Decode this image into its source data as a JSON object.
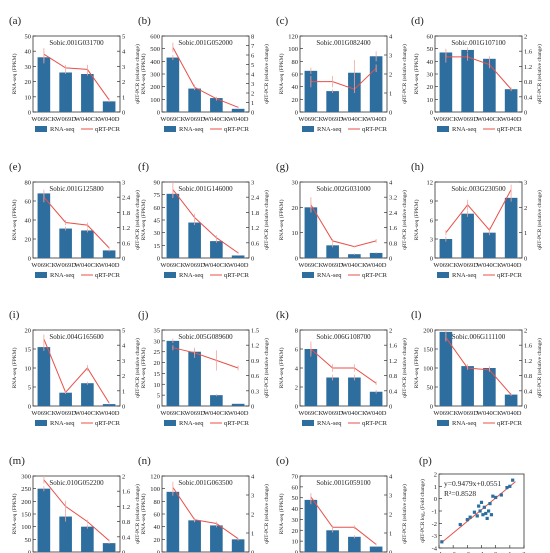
{
  "figure": {
    "common": {
      "categories": [
        "W069CK",
        "W069D",
        "W040CK",
        "W040D"
      ],
      "ylabel_left": "RNA-seq (FPKM)",
      "ylabel_right": "qRT-PCR (relative change)",
      "legend_bar": "RNA-seq",
      "legend_line": "qRT-PCR",
      "colors": {
        "bar": "#2e6e9e",
        "line": "#e8504a",
        "axis": "#333333"
      }
    }
  },
  "chart_data": [
    {
      "type": "bar",
      "panel": "(a)",
      "title": "Sobic.001G031700",
      "categories": [
        "W069CK",
        "W069D",
        "W040CK",
        "W040D"
      ],
      "series": [
        {
          "name": "RNA-seq",
          "axis": "left",
          "values": [
            36,
            26,
            25,
            7
          ],
          "errors": [
            4,
            1,
            1,
            0.5
          ]
        },
        {
          "name": "qRT-PCR",
          "axis": "right",
          "type": "line",
          "values": [
            3.8,
            2.9,
            2.8,
            0.8
          ],
          "errors": [
            0.4,
            0.2,
            0.3,
            0.1
          ]
        }
      ],
      "ylim_left": [
        0,
        50
      ],
      "yticks_left": [
        0,
        10,
        20,
        30,
        40,
        50
      ],
      "ylim_right": [
        0,
        5
      ],
      "yticks_right": [
        0,
        1,
        2,
        3,
        4,
        5
      ]
    },
    {
      "type": "bar",
      "panel": "(b)",
      "title": "Sobic.001G052000",
      "categories": [
        "W069CK",
        "W069D",
        "W040CK",
        "W040D"
      ],
      "series": [
        {
          "name": "RNA-seq",
          "axis": "left",
          "values": [
            430,
            185,
            110,
            25
          ],
          "errors": [
            20,
            10,
            8,
            3
          ]
        },
        {
          "name": "qRT-PCR",
          "axis": "right",
          "type": "line",
          "values": [
            6.8,
            2.6,
            1.4,
            0.5
          ],
          "errors": [
            0.5,
            0.3,
            0.2,
            0.1
          ]
        }
      ],
      "ylim_left": [
        0,
        600
      ],
      "yticks_left": [
        0,
        100,
        200,
        300,
        400,
        500,
        600
      ],
      "ylim_right": [
        0,
        8
      ],
      "yticks_right": [
        0,
        1,
        2,
        3,
        4,
        5,
        6,
        7,
        8
      ]
    },
    {
      "type": "bar",
      "panel": "(c)",
      "title": "Sobic.001G082400",
      "categories": [
        "W069CK",
        "W069D",
        "W040CK",
        "W040D"
      ],
      "series": [
        {
          "name": "RNA-seq",
          "axis": "left",
          "values": [
            65,
            33,
            62,
            88
          ],
          "errors": [
            5,
            3,
            20,
            8
          ]
        },
        {
          "name": "qRT-PCR",
          "axis": "right",
          "type": "line",
          "values": [
            1.6,
            1.6,
            1.2,
            2.3
          ],
          "errors": [
            0.3,
            0.3,
            0.2,
            0.2
          ]
        }
      ],
      "ylim_left": [
        0,
        120
      ],
      "yticks_left": [
        0,
        20,
        40,
        60,
        80,
        100,
        120
      ],
      "ylim_right": [
        0,
        4
      ],
      "yticks_right": [
        0,
        1,
        2,
        3,
        4
      ]
    },
    {
      "type": "bar",
      "panel": "(d)",
      "title": "Sobic.001G107100",
      "categories": [
        "W069CK",
        "W069D",
        "W040CK",
        "W040D"
      ],
      "series": [
        {
          "name": "RNA-seq",
          "axis": "left",
          "values": [
            47,
            49,
            42,
            18
          ],
          "errors": [
            3,
            2,
            2,
            1
          ]
        },
        {
          "name": "qRT-PCR",
          "axis": "right",
          "type": "line",
          "values": [
            1.45,
            1.45,
            1.25,
            0.6
          ],
          "errors": [
            0.15,
            0.1,
            0.1,
            0.05
          ]
        }
      ],
      "ylim_left": [
        0,
        60
      ],
      "yticks_left": [
        0,
        10,
        20,
        30,
        40,
        50,
        60
      ],
      "ylim_right": [
        0,
        2.0
      ],
      "yticks_right": [
        0,
        0.4,
        0.8,
        1.2,
        1.6,
        2.0
      ]
    },
    {
      "type": "bar",
      "panel": "(e)",
      "title": "Sobic.001G125800",
      "categories": [
        "W069CK",
        "W069D",
        "W040CK",
        "W040D"
      ],
      "series": [
        {
          "name": "RNA-seq",
          "axis": "left",
          "values": [
            68,
            31,
            29,
            8
          ],
          "errors": [
            4,
            2,
            2,
            1
          ]
        },
        {
          "name": "qRT-PCR",
          "axis": "right",
          "type": "line",
          "values": [
            2.4,
            1.4,
            1.3,
            0.4
          ],
          "errors": [
            0.2,
            0.1,
            0.1,
            0.05
          ]
        }
      ],
      "ylim_left": [
        0,
        80
      ],
      "yticks_left": [
        0,
        20,
        40,
        60,
        80
      ],
      "ylim_right": [
        0,
        3.0
      ],
      "yticks_right": [
        0,
        0.6,
        1.2,
        1.8,
        2.4,
        3.0
      ]
    },
    {
      "type": "bar",
      "panel": "(f)",
      "title": "Sobic.001G146000",
      "categories": [
        "W069CK",
        "W069D",
        "W040CK",
        "W040D"
      ],
      "series": [
        {
          "name": "RNA-seq",
          "axis": "left",
          "values": [
            76,
            42,
            20,
            3
          ],
          "errors": [
            5,
            3,
            2,
            0.5
          ]
        },
        {
          "name": "qRT-PCR",
          "axis": "right",
          "type": "line",
          "values": [
            2.7,
            1.6,
            0.8,
            0.2
          ],
          "errors": [
            0.3,
            0.15,
            0.1,
            0.05
          ]
        }
      ],
      "ylim_left": [
        0,
        90
      ],
      "yticks_left": [
        0,
        15,
        30,
        45,
        60,
        75,
        90
      ],
      "ylim_right": [
        0,
        3.0
      ],
      "yticks_right": [
        0,
        0.6,
        1.2,
        1.8,
        2.4,
        3.0
      ]
    },
    {
      "type": "bar",
      "panel": "(g)",
      "title": "Sobic.002G031000",
      "categories": [
        "W069CK",
        "W069D",
        "W040CK",
        "W040D"
      ],
      "series": [
        {
          "name": "RNA-seq",
          "axis": "left",
          "values": [
            20,
            5,
            1.5,
            2
          ],
          "errors": [
            2,
            0.8,
            0.3,
            0.3
          ]
        },
        {
          "name": "qRT-PCR",
          "axis": "right",
          "type": "line",
          "values": [
            2.8,
            0.9,
            0.6,
            0.9
          ],
          "errors": [
            0.4,
            0.1,
            0.05,
            0.1
          ]
        }
      ],
      "ylim_left": [
        0,
        30
      ],
      "yticks_left": [
        0,
        10,
        20,
        30
      ],
      "ylim_right": [
        0,
        4.0
      ],
      "yticks_right": [
        0,
        0.8,
        1.6,
        2.4,
        3.2,
        4.0
      ]
    },
    {
      "type": "bar",
      "panel": "(h)",
      "title": "Sobic.003G230500",
      "categories": [
        "W069CK",
        "W069D",
        "W040CK",
        "W040D"
      ],
      "series": [
        {
          "name": "RNA-seq",
          "axis": "left",
          "values": [
            3,
            7,
            4,
            9.5
          ],
          "errors": [
            0.4,
            0.5,
            0.4,
            0.6
          ]
        },
        {
          "name": "qRT-PCR",
          "axis": "right",
          "type": "line",
          "values": [
            1.0,
            2.1,
            1.1,
            2.7
          ],
          "errors": [
            0.1,
            0.2,
            0.1,
            0.2
          ]
        }
      ],
      "ylim_left": [
        0,
        12
      ],
      "yticks_left": [
        0,
        3,
        6,
        9,
        12
      ],
      "ylim_right": [
        0,
        3
      ],
      "yticks_right": [
        0,
        1,
        2,
        3
      ]
    },
    {
      "type": "bar",
      "panel": "(i)",
      "title": "Sobic.004G165600",
      "categories": [
        "W069CK",
        "W069D",
        "W040CK",
        "W040D"
      ],
      "series": [
        {
          "name": "RNA-seq",
          "axis": "left",
          "values": [
            15.5,
            3.5,
            6,
            0.5
          ],
          "errors": [
            1,
            0.3,
            0.4,
            0.1
          ]
        },
        {
          "name": "qRT-PCR",
          "axis": "right",
          "type": "line",
          "values": [
            4.4,
            0.9,
            2.5,
            0.2
          ],
          "errors": [
            0.3,
            0.1,
            0.2,
            0.05
          ]
        }
      ],
      "ylim_left": [
        0,
        20
      ],
      "yticks_left": [
        0,
        5,
        10,
        15,
        20
      ],
      "ylim_right": [
        0,
        5
      ],
      "yticks_right": [
        0,
        1,
        2,
        3,
        4,
        5
      ]
    },
    {
      "type": "bar",
      "panel": "(j)",
      "title": "Sobic.005G089600",
      "categories": [
        "W069CK",
        "W069D",
        "W040CK",
        "W040D"
      ],
      "series": [
        {
          "name": "RNA-seq",
          "axis": "left",
          "values": [
            30,
            25,
            5,
            1
          ],
          "errors": [
            1,
            1.5,
            0.5,
            0.2
          ]
        },
        {
          "name": "qRT-PCR",
          "axis": "right",
          "type": "line",
          "values": [
            1.15,
            1.05,
            0.9,
            0.75
          ],
          "errors": [
            0.05,
            0.1,
            0.2,
            0.05
          ]
        }
      ],
      "ylim_left": [
        0,
        35
      ],
      "yticks_left": [
        0,
        5,
        10,
        15,
        20,
        25,
        30,
        35
      ],
      "ylim_right": [
        0,
        1.5
      ],
      "yticks_right": [
        0,
        0.3,
        0.6,
        0.9,
        1.2,
        1.5
      ]
    },
    {
      "type": "bar",
      "panel": "(k)",
      "title": "Sobic.006G108700",
      "categories": [
        "W069CK",
        "W069D",
        "W040CK",
        "W040D"
      ],
      "series": [
        {
          "name": "RNA-seq",
          "axis": "left",
          "values": [
            6,
            3,
            3,
            1.5
          ],
          "errors": [
            0.5,
            0.3,
            0.3,
            0.2
          ]
        },
        {
          "name": "qRT-PCR",
          "axis": "right",
          "type": "line",
          "values": [
            1.5,
            1.0,
            1.0,
            0.6
          ],
          "errors": [
            0.2,
            0.1,
            0.1,
            0.05
          ]
        }
      ],
      "ylim_left": [
        0,
        8
      ],
      "yticks_left": [
        0,
        2,
        4,
        6,
        8
      ],
      "ylim_right": [
        0,
        2.0
      ],
      "yticks_right": [
        0,
        0.4,
        0.8,
        1.2,
        1.6,
        2.0
      ]
    },
    {
      "type": "bar",
      "panel": "(l)",
      "title": "Sobic.006G111100",
      "categories": [
        "W069CK",
        "W069D",
        "W040CK",
        "W040D"
      ],
      "series": [
        {
          "name": "RNA-seq",
          "axis": "left",
          "values": [
            195,
            105,
            100,
            30
          ],
          "errors": [
            8,
            5,
            5,
            3
          ]
        },
        {
          "name": "qRT-PCR",
          "axis": "right",
          "type": "line",
          "values": [
            1.8,
            1.0,
            0.95,
            0.3
          ],
          "errors": [
            0.1,
            0.05,
            0.05,
            0.03
          ]
        }
      ],
      "ylim_left": [
        0,
        200
      ],
      "yticks_left": [
        0,
        50,
        100,
        150,
        200
      ],
      "ylim_right": [
        0,
        2.0
      ],
      "yticks_right": [
        0,
        0.4,
        0.8,
        1.2,
        1.6,
        2.0
      ]
    },
    {
      "type": "bar",
      "panel": "(m)",
      "title": "Sobic.010G052200",
      "categories": [
        "W069CK",
        "W069D",
        "W040CK",
        "W040D"
      ],
      "series": [
        {
          "name": "RNA-seq",
          "axis": "left",
          "values": [
            250,
            140,
            100,
            35
          ],
          "errors": [
            10,
            20,
            8,
            3
          ]
        },
        {
          "name": "qRT-PCR",
          "axis": "right",
          "type": "line",
          "values": [
            1.9,
            1.2,
            0.8,
            0.3
          ],
          "errors": [
            0.1,
            0.15,
            0.05,
            0.03
          ]
        }
      ],
      "ylim_left": [
        0,
        300
      ],
      "yticks_left": [
        0,
        50,
        100,
        150,
        200,
        250,
        300
      ],
      "ylim_right": [
        0,
        2.0
      ],
      "yticks_right": [
        0,
        0.4,
        0.8,
        1.2,
        1.6,
        2.0
      ]
    },
    {
      "type": "bar",
      "panel": "(n)",
      "title": "Sobic.001G063500",
      "categories": [
        "W069CK",
        "W069D",
        "W040CK",
        "W040D"
      ],
      "series": [
        {
          "name": "RNA-seq",
          "axis": "left",
          "values": [
            95,
            50,
            42,
            20
          ],
          "errors": [
            6,
            3,
            3,
            2
          ]
        },
        {
          "name": "qRT-PCR",
          "axis": "right",
          "type": "line",
          "values": [
            3.4,
            1.7,
            1.5,
            0.7
          ],
          "errors": [
            0.3,
            0.1,
            0.1,
            0.05
          ]
        }
      ],
      "ylim_left": [
        0,
        120
      ],
      "yticks_left": [
        0,
        20,
        40,
        60,
        80,
        100,
        120
      ],
      "ylim_right": [
        0,
        4
      ],
      "yticks_right": [
        0,
        1,
        2,
        3,
        4
      ]
    },
    {
      "type": "bar",
      "panel": "(o)",
      "title": "Sobic.001G059100",
      "categories": [
        "W069CK",
        "W069D",
        "W040CK",
        "W040D"
      ],
      "series": [
        {
          "name": "RNA-seq",
          "axis": "left",
          "values": [
            48,
            20,
            14,
            5
          ],
          "errors": [
            4,
            2,
            1.5,
            0.5
          ]
        },
        {
          "name": "qRT-PCR",
          "axis": "right",
          "type": "line",
          "values": [
            2.9,
            1.3,
            1.3,
            0.4
          ],
          "errors": [
            0.2,
            0.1,
            0.1,
            0.05
          ]
        }
      ],
      "ylim_left": [
        0,
        70
      ],
      "yticks_left": [
        0,
        10,
        20,
        30,
        40,
        50,
        60,
        70
      ],
      "ylim_right": [
        0,
        4
      ],
      "yticks_right": [
        0,
        1,
        2,
        3,
        4
      ]
    },
    {
      "type": "scatter",
      "panel": "(p)",
      "xlabel": "RNA-Seq log₂ (Fold change)",
      "ylabel": "qRT-PCR log₂ (Fold change)",
      "equation": "y=0.9479x+0.0551",
      "r2": "R²=0.8528",
      "xlim": [
        -4,
        2
      ],
      "ylim": [
        -4,
        2
      ],
      "xticks": [
        -4,
        -3,
        -2,
        -1,
        0,
        1,
        2
      ],
      "yticks": [
        -4,
        -3,
        -2,
        -1,
        0,
        1,
        2
      ],
      "fit": {
        "slope": 0.9479,
        "intercept": 0.0551
      },
      "points": [
        [
          -3.8,
          -3.5
        ],
        [
          -2.5,
          -2.1
        ],
        [
          -2.0,
          -1.7
        ],
        [
          -1.8,
          -1.5
        ],
        [
          -1.5,
          -1.1
        ],
        [
          -1.3,
          -1.4
        ],
        [
          -1.2,
          -0.6
        ],
        [
          -1.1,
          -1.0
        ],
        [
          -1.0,
          -0.3
        ],
        [
          -0.9,
          -1.3
        ],
        [
          -0.8,
          -0.7
        ],
        [
          -0.7,
          -1.2
        ],
        [
          -0.6,
          -1.6
        ],
        [
          -0.5,
          -1.0
        ],
        [
          -0.4,
          -0.4
        ],
        [
          -0.3,
          -1.3
        ],
        [
          -0.2,
          0.2
        ],
        [
          0.0,
          0.1
        ],
        [
          0.4,
          0.3
        ],
        [
          0.8,
          0.9
        ],
        [
          1.0,
          1.0
        ],
        [
          1.2,
          1.5
        ]
      ]
    }
  ]
}
